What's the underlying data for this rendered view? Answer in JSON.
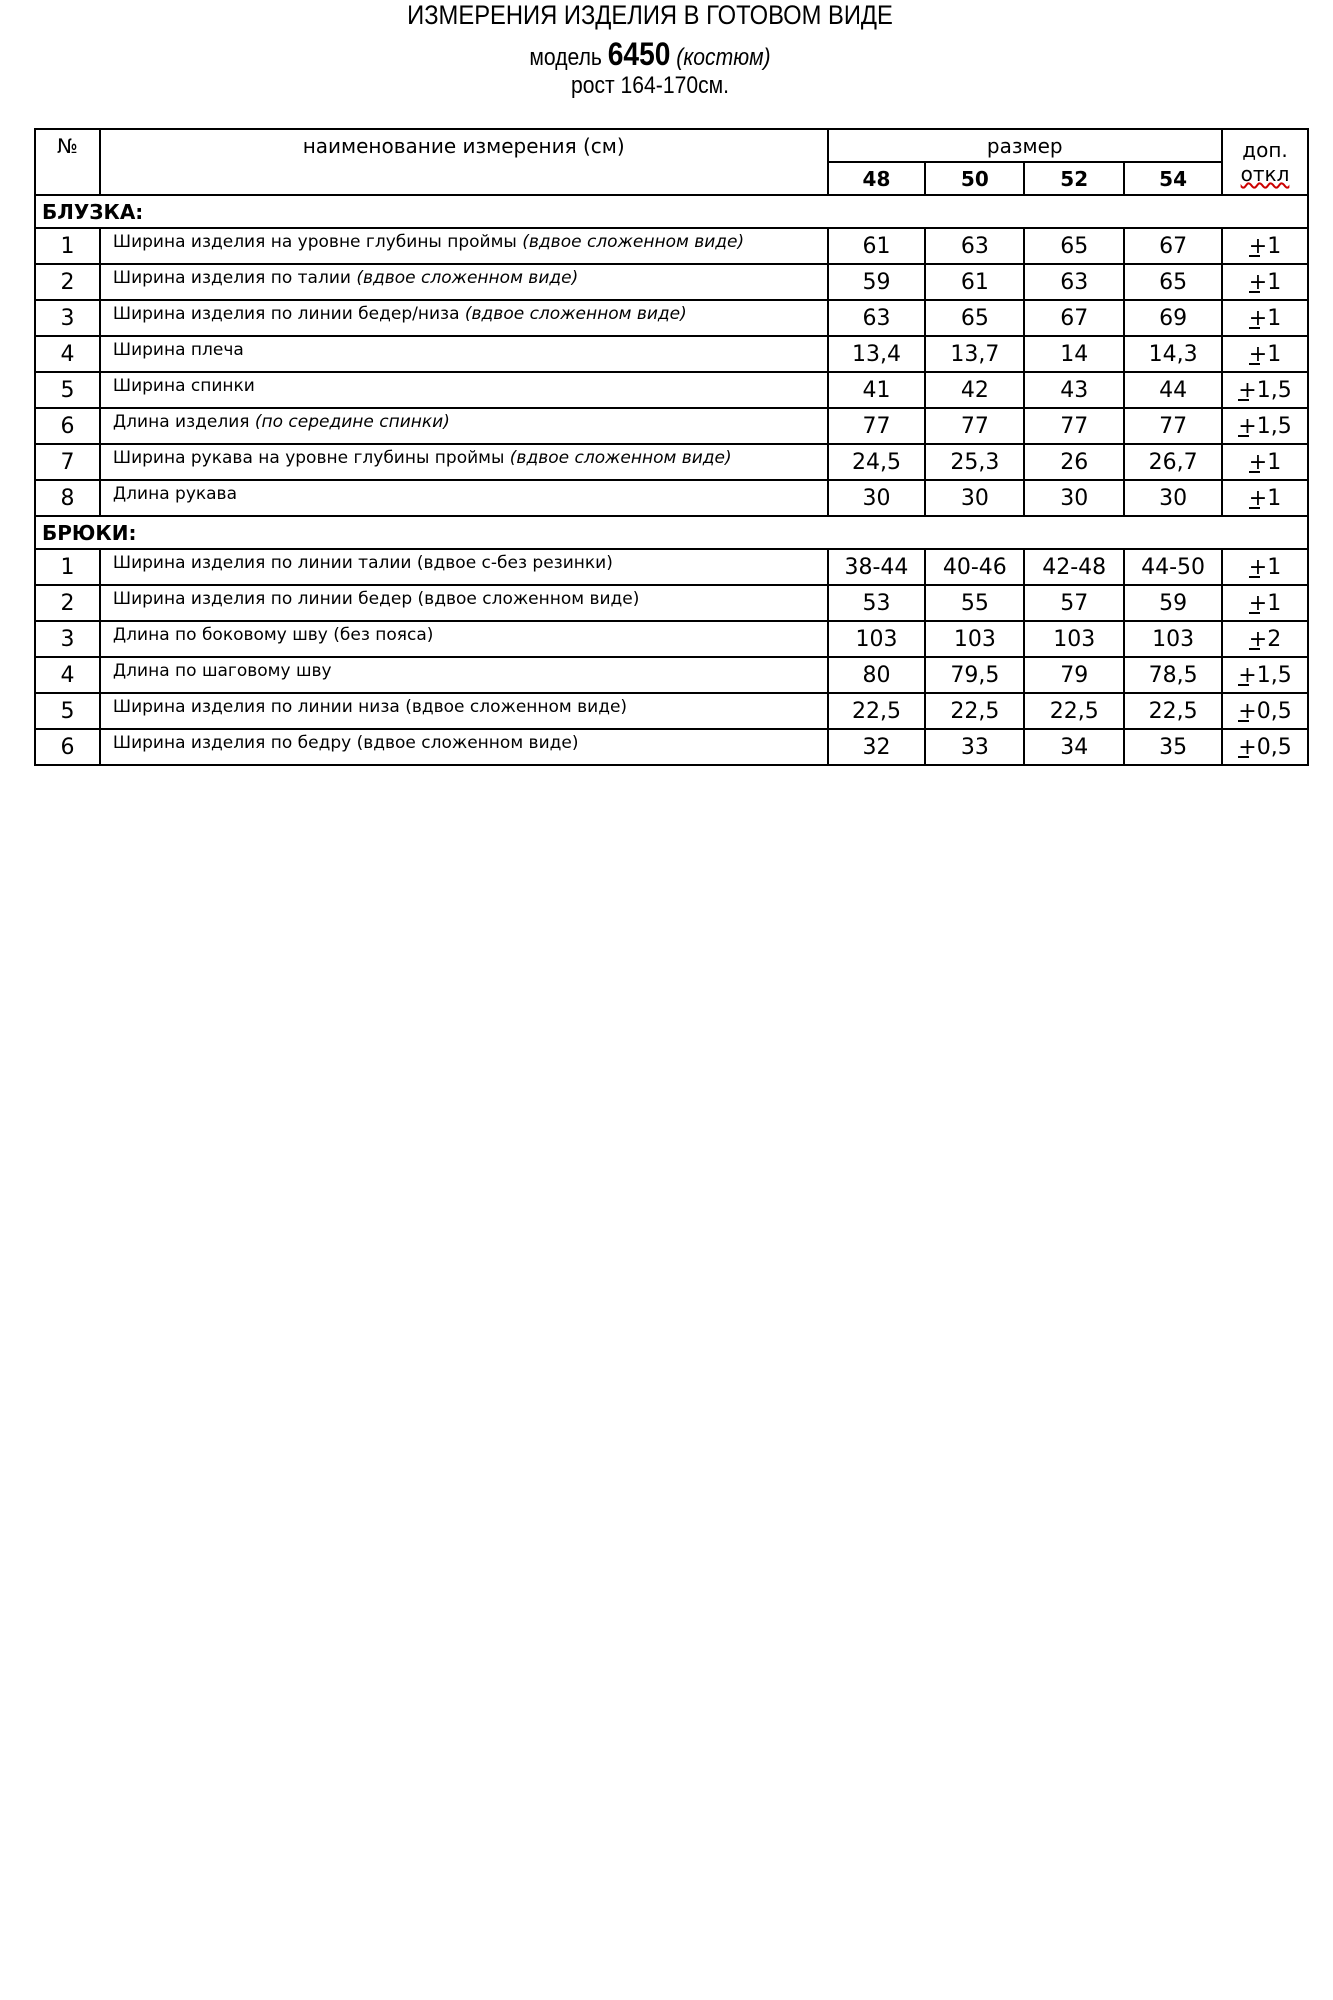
{
  "header": {
    "title": "ИЗМЕРЕНИЯ ИЗДЕЛИЯ В ГОТОВОМ ВИДЕ",
    "model_prefix": "модель",
    "model_number": "6450",
    "model_type": "(костюм)",
    "height": "рост 164-170см."
  },
  "table": {
    "col_no": "№",
    "col_name": "наименование измерения (см)",
    "col_size": "размер",
    "col_tol_1": "доп.",
    "col_tol_2": "откл",
    "sizes": [
      "48",
      "50",
      "52",
      "54"
    ],
    "sections": [
      {
        "title": "БЛУЗКА:",
        "rows": [
          {
            "no": "1",
            "name": "Ширина изделия на уровне глубины проймы",
            "note": "(вдвое сложенном виде)",
            "values": [
              "61",
              "63",
              "65",
              "67"
            ],
            "tol": "+1"
          },
          {
            "no": "2",
            "name": "Ширина изделия по талии",
            "note": "(вдвое сложенном виде)",
            "values": [
              "59",
              "61",
              "63",
              "65"
            ],
            "tol": "+1"
          },
          {
            "no": "3",
            "name": "Ширина изделия по линии бедер/низа",
            "note": "(вдвое сложенном виде)",
            "values": [
              "63",
              "65",
              "67",
              "69"
            ],
            "tol": "+1"
          },
          {
            "no": "4",
            "name": "Ширина плеча",
            "note": "",
            "values": [
              "13,4",
              "13,7",
              "14",
              "14,3"
            ],
            "tol": "+1"
          },
          {
            "no": "5",
            "name": "Ширина спинки",
            "note": "",
            "values": [
              "41",
              "42",
              "43",
              "44"
            ],
            "tol": "+1,5"
          },
          {
            "no": "6",
            "name": "Длина изделия",
            "note": "(по середине спинки)",
            "values": [
              "77",
              "77",
              "77",
              "77"
            ],
            "tol": "+1,5"
          },
          {
            "no": "7",
            "name": "Ширина рукава на уровне глубины проймы",
            "note": "(вдвое сложенном виде)",
            "values": [
              "24,5",
              "25,3",
              "26",
              "26,7"
            ],
            "tol": "+1"
          },
          {
            "no": "8",
            "name": "Длина рукава",
            "note": "",
            "values": [
              "30",
              "30",
              "30",
              "30"
            ],
            "tol": "+1"
          }
        ]
      },
      {
        "title": "БРЮКИ:",
        "rows": [
          {
            "no": "1",
            "name": "Ширина изделия по линии талии (вдвое с-без резинки)",
            "note": "",
            "values": [
              "38-44",
              "40-46",
              "42-48",
              "44-50"
            ],
            "tol": "+1"
          },
          {
            "no": "2",
            "name": "Ширина изделия по линии бедер (вдвое сложенном виде)",
            "note": "",
            "values": [
              "53",
              "55",
              "57",
              "59"
            ],
            "tol": "+1"
          },
          {
            "no": "3",
            "name": "Длина по боковому шву (без пояса)",
            "note": "",
            "values": [
              "103",
              "103",
              "103",
              "103"
            ],
            "tol": "+2"
          },
          {
            "no": "4",
            "name": "Длина по шаговому шву",
            "note": "",
            "values": [
              "80",
              "79,5",
              "79",
              "78,5"
            ],
            "tol": "+1,5"
          },
          {
            "no": "5",
            "name": "Ширина изделия по линии низа (вдвое сложенном виде)",
            "note": "",
            "values": [
              "22,5",
              "22,5",
              "22,5",
              "22,5"
            ],
            "tol": "+0,5"
          },
          {
            "no": "6",
            "name": "Ширина изделия по бедру (вдвое сложенном виде)",
            "note": "",
            "values": [
              "32",
              "33",
              "34",
              "35"
            ],
            "tol": "+0,5"
          }
        ]
      }
    ]
  }
}
